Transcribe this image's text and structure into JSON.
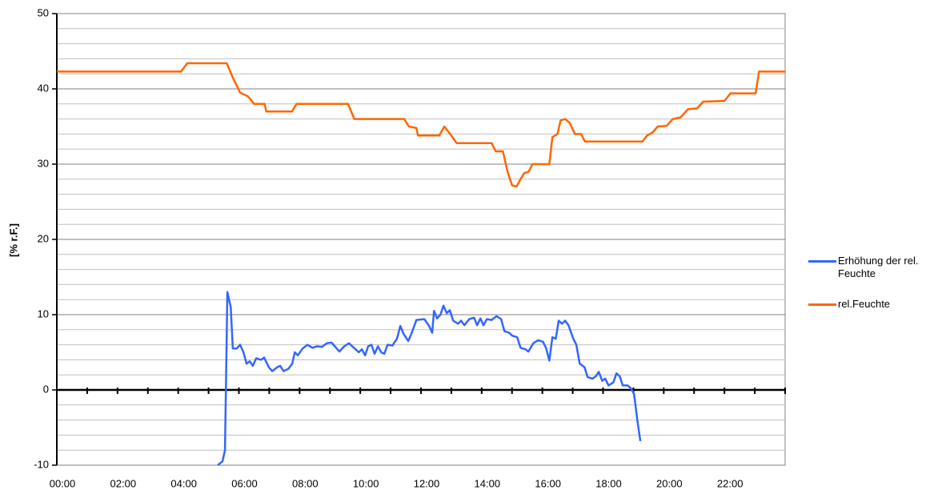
{
  "chart_data": {
    "type": "line",
    "ylabel": "[% r.F.]",
    "xlim": [
      0,
      24
    ],
    "ylim": [
      -10,
      50
    ],
    "xticks": [
      {
        "value": 0,
        "label": "00:00"
      },
      {
        "value": 2,
        "label": "02:00"
      },
      {
        "value": 4,
        "label": "04:00"
      },
      {
        "value": 6,
        "label": "06:00"
      },
      {
        "value": 8,
        "label": "08:00"
      },
      {
        "value": 10,
        "label": "10:00"
      },
      {
        "value": 12,
        "label": "12:00"
      },
      {
        "value": 14,
        "label": "14:00"
      },
      {
        "value": 16,
        "label": "16:00"
      },
      {
        "value": 18,
        "label": "18:00"
      },
      {
        "value": 20,
        "label": "20:00"
      },
      {
        "value": 22,
        "label": "22:00"
      }
    ],
    "xminorticks": [
      1,
      3,
      5,
      7,
      9,
      11,
      13,
      15,
      17,
      19,
      21,
      23,
      24
    ],
    "yticks": [
      -10,
      0,
      10,
      20,
      30,
      40,
      50
    ],
    "yminorticks": [
      -8,
      -6,
      -4,
      -2,
      2,
      4,
      6,
      8,
      12,
      14,
      16,
      18,
      22,
      24,
      26,
      28,
      32,
      34,
      36,
      38,
      42,
      44,
      46,
      48
    ],
    "grid": true,
    "legend": "right",
    "series": [
      {
        "name": "Erhöhung der rel. Feuchte",
        "color": "#3366ff",
        "x": [
          5.3,
          5.46,
          5.54,
          5.62,
          5.73,
          5.8,
          5.93,
          6.04,
          6.15,
          6.25,
          6.36,
          6.46,
          6.57,
          6.73,
          6.83,
          6.99,
          7.1,
          7.26,
          7.36,
          7.47,
          7.63,
          7.76,
          7.84,
          7.94,
          8.1,
          8.26,
          8.42,
          8.58,
          8.73,
          8.9,
          9.05,
          9.16,
          9.31,
          9.47,
          9.63,
          9.79,
          9.95,
          10.05,
          10.16,
          10.26,
          10.37,
          10.47,
          10.58,
          10.69,
          10.79,
          10.9,
          11.06,
          11.21,
          11.32,
          11.42,
          11.58,
          11.69,
          11.85,
          12.11,
          12.27,
          12.37,
          12.43,
          12.53,
          12.64,
          12.74,
          12.85,
          12.95,
          13.06,
          13.22,
          13.32,
          13.43,
          13.59,
          13.75,
          13.85,
          13.96,
          14.06,
          14.17,
          14.33,
          14.49,
          14.64,
          14.75,
          14.91,
          15.01,
          15.17,
          15.28,
          15.44,
          15.54,
          15.7,
          15.86,
          16.02,
          16.12,
          16.23,
          16.33,
          16.44,
          16.54,
          16.65,
          16.75,
          16.86,
          17.02,
          17.12,
          17.23,
          17.39,
          17.49,
          17.65,
          17.76,
          17.86,
          17.97,
          18.07,
          18.18,
          18.34,
          18.44,
          18.55,
          18.65,
          18.81,
          18.92,
          19.02,
          19.13,
          19.23
        ],
        "values": [
          -10,
          -9.5,
          -8,
          13,
          11,
          5.5,
          5.5,
          6,
          5,
          3.5,
          3.8,
          3.2,
          4.2,
          4,
          4.3,
          3,
          2.5,
          3,
          3.2,
          2.5,
          2.8,
          3.5,
          5,
          4.6,
          5.5,
          6,
          5.6,
          5.8,
          5.7,
          6.2,
          6.3,
          5.8,
          5.1,
          5.8,
          6.2,
          5.6,
          5,
          5.4,
          4.6,
          5.8,
          6,
          4.8,
          5.8,
          5,
          4.8,
          6,
          5.9,
          6.8,
          8.5,
          7.5,
          6.5,
          7.5,
          9.3,
          9.4,
          8.5,
          7.6,
          10.5,
          9.5,
          10,
          11.2,
          10.2,
          10.6,
          9.2,
          8.8,
          9.2,
          8.6,
          9.4,
          9.6,
          8.6,
          9.5,
          8.6,
          9.4,
          9.3,
          9.8,
          9.4,
          7.8,
          7.6,
          7.2,
          7,
          5.6,
          5.4,
          5.1,
          6.2,
          6.6,
          6.4,
          5.6,
          3.9,
          7,
          6.8,
          9.2,
          8.8,
          9.2,
          8.6,
          6.8,
          6,
          3.5,
          3,
          1.7,
          1.5,
          1.8,
          2.4,
          1.2,
          1.5,
          0.6,
          1,
          2.2,
          1.8,
          0.6,
          0.6,
          0.2,
          -0.5,
          -4,
          -6.8
        ]
      },
      {
        "name": "rel.Feuchte",
        "color": "#ff6600",
        "x": [
          0,
          4.09,
          4.3,
          5.6,
          5.8,
          6.04,
          6.3,
          6.5,
          6.85,
          6.9,
          7.75,
          7.9,
          9.6,
          9.8,
          11.45,
          11.6,
          11.85,
          11.9,
          12.6,
          12.77,
          13.0,
          13.17,
          14.33,
          14.46,
          14.7,
          14.85,
          15.0,
          15.15,
          15.28,
          15.4,
          15.55,
          15.67,
          16.23,
          16.33,
          16.5,
          16.6,
          16.75,
          16.9,
          17.07,
          17.28,
          17.4,
          19.3,
          19.45,
          19.63,
          19.8,
          20.1,
          20.3,
          20.55,
          20.8,
          21.1,
          21.3,
          22.0,
          22.2,
          23.03,
          23.14,
          24
        ],
        "values": [
          42.3,
          42.3,
          43.4,
          43.4,
          41.5,
          39.5,
          39,
          38,
          38,
          37,
          37,
          38,
          38,
          36,
          36,
          35,
          34.8,
          33.8,
          33.8,
          35,
          33.8,
          32.8,
          32.8,
          31.7,
          31.7,
          29,
          27.2,
          27,
          28,
          28.8,
          29,
          30,
          30,
          33.6,
          34,
          35.8,
          36,
          35.5,
          34,
          34,
          33,
          33,
          33.8,
          34.2,
          35,
          35.1,
          36,
          36.2,
          37.3,
          37.4,
          38.3,
          38.4,
          39.4,
          39.4,
          42.3,
          42.3
        ]
      }
    ]
  }
}
